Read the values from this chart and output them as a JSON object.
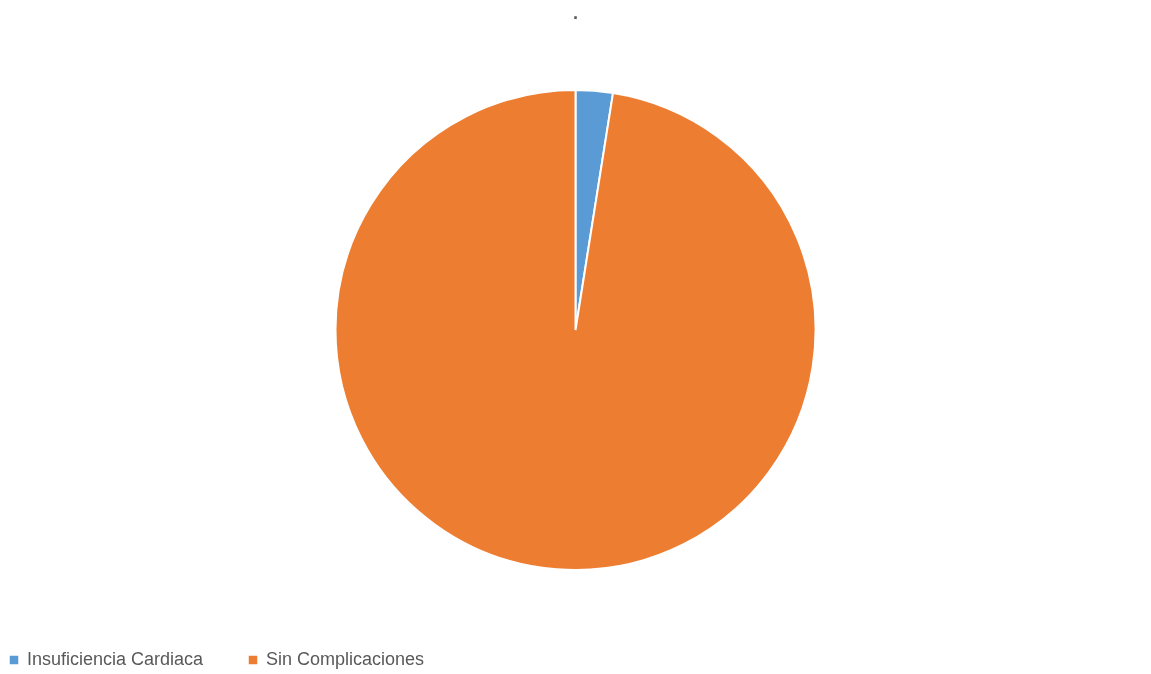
{
  "chart_data": {
    "type": "pie",
    "title": ".",
    "categories": [
      "Insuficiencia Cardiaca",
      "Sin Complicaciones"
    ],
    "values": [
      2.5,
      97.5
    ],
    "colors": [
      "#5b9bd5",
      "#ed7d31"
    ],
    "legend": "bottom"
  }
}
